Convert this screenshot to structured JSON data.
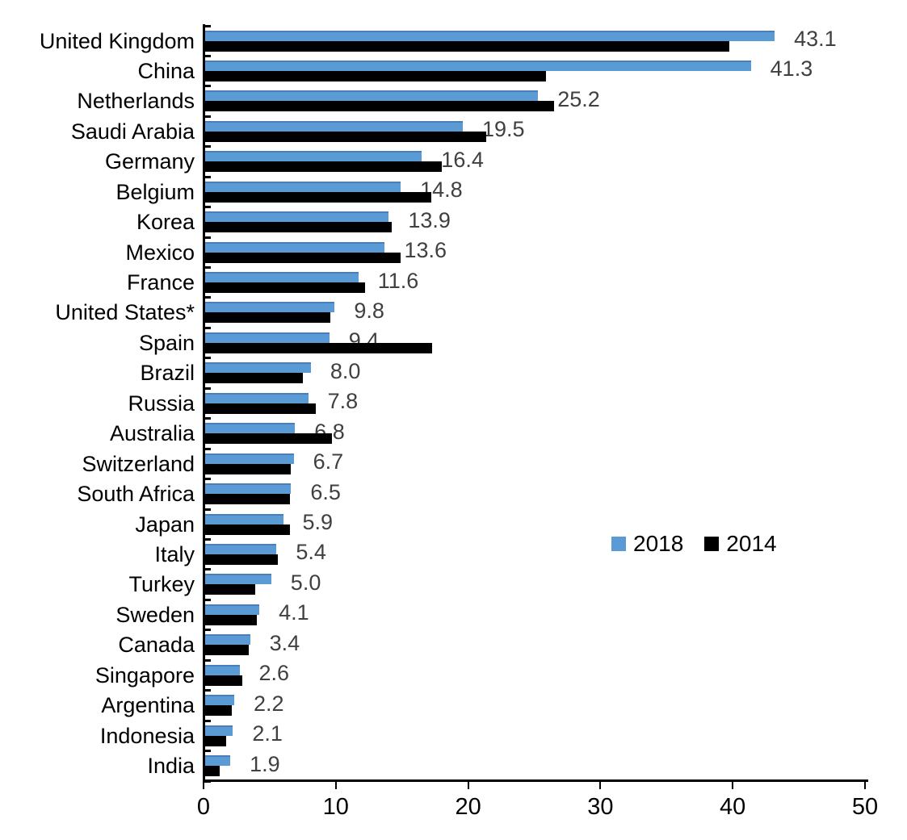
{
  "chart_data": {
    "type": "bar",
    "orientation": "horizontal",
    "title": "",
    "xlabel": "",
    "ylabel": "",
    "xlim": [
      0,
      50
    ],
    "x_ticks": [
      "0",
      "10",
      "20",
      "30",
      "40",
      "50"
    ],
    "grid": false,
    "legend_position": "middle-right",
    "categories": [
      "United Kingdom",
      "China",
      "Netherlands",
      "Saudi Arabia",
      "Germany",
      "Belgium",
      "Korea",
      "Mexico",
      "France",
      "United States*",
      "Spain",
      "Brazil",
      "Russia",
      "Australia",
      "Switzerland",
      "South Africa",
      "Japan",
      "Italy",
      "Turkey",
      "Sweden",
      "Canada",
      "Singapore",
      "Argentina",
      "Indonesia",
      "India"
    ],
    "series": [
      {
        "name": "2018",
        "color": "#5B9BD5",
        "labels_shown": true,
        "values": [
          43.1,
          41.3,
          25.2,
          19.5,
          16.4,
          14.8,
          13.9,
          13.6,
          11.6,
          9.8,
          9.4,
          8.0,
          7.8,
          6.8,
          6.7,
          6.5,
          5.9,
          5.4,
          5.0,
          4.1,
          3.4,
          2.6,
          2.2,
          2.1,
          1.9
        ]
      },
      {
        "name": "2014",
        "color": "#000000",
        "labels_shown": false,
        "values": [
          39.7,
          25.8,
          26.4,
          21.3,
          17.9,
          17.1,
          14.1,
          14.8,
          12.1,
          9.5,
          17.2,
          7.4,
          8.4,
          9.6,
          6.5,
          6.4,
          6.4,
          5.5,
          3.8,
          3.9,
          3.3,
          2.8,
          2.0,
          1.6,
          1.1
        ]
      }
    ],
    "value_labels": [
      "43.1",
      "41.3",
      "25.2",
      "19.5",
      "16.4",
      "14.8",
      "13.9",
      "13.6",
      "11.6",
      "9.8",
      "9.4",
      "8.0",
      "7.8",
      "6.8",
      "6.7",
      "6.5",
      "5.9",
      "5.4",
      "5.0",
      "4.1",
      "3.4",
      "2.6",
      "2.2",
      "2.1",
      "1.9"
    ],
    "legend": [
      {
        "label": "2018",
        "color": "#5B9BD5"
      },
      {
        "label": "2014",
        "color": "#000000"
      }
    ]
  },
  "colors": {
    "background": "#FFFFFF",
    "axis": "#000000",
    "value_label_text": "#404040",
    "bar_2018": "#5B9BD5",
    "bar_2018_border": "#4A7EBB",
    "bar_2014": "#000000"
  }
}
